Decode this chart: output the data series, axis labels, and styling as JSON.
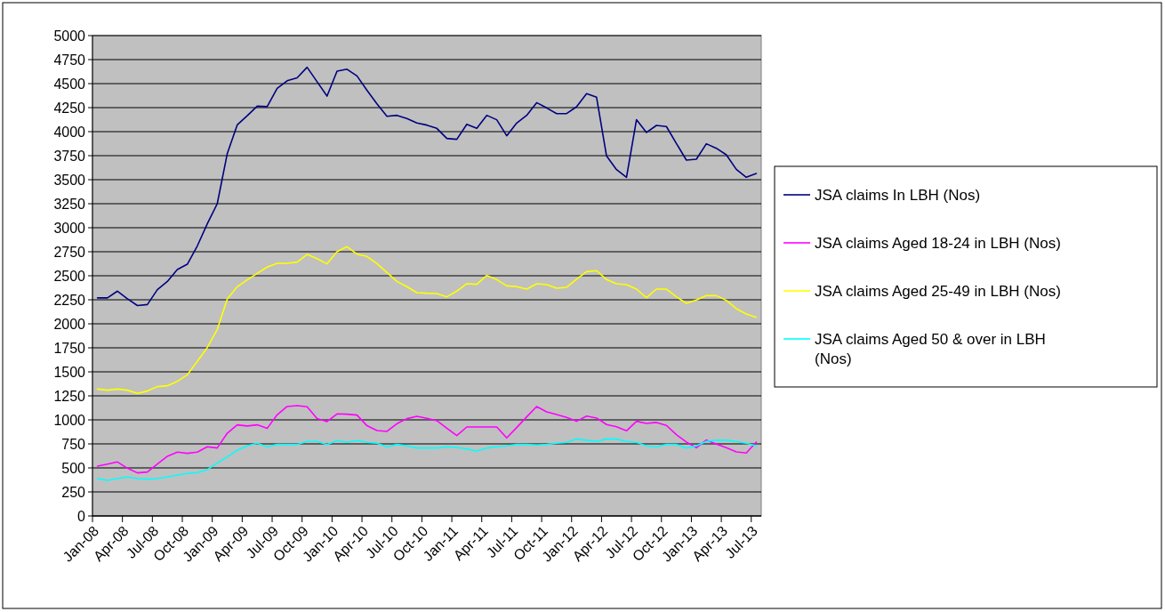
{
  "chart_data": {
    "type": "line",
    "categories": [
      "Jan-08",
      null,
      null,
      "Apr-08",
      null,
      null,
      "Jul-08",
      null,
      null,
      "Oct-08",
      null,
      null,
      "Jan-09",
      null,
      null,
      "Apr-09",
      null,
      null,
      "Jul-09",
      null,
      null,
      "Oct-09",
      null,
      null,
      "Jan-10",
      null,
      null,
      "Apr-10",
      null,
      null,
      "Jul-10",
      null,
      null,
      "Oct-10",
      null,
      null,
      "Jan-11",
      null,
      null,
      "Apr-11",
      null,
      null,
      "Jul-11",
      null,
      null,
      "Oct-11",
      null,
      null,
      "Jan-12",
      null,
      null,
      "Apr-12",
      null,
      null,
      "Jul-12",
      null,
      null,
      "Oct-12",
      null,
      null,
      "Jan-13",
      null,
      null,
      "Apr-13",
      null,
      null,
      "Jul-13"
    ],
    "series": [
      {
        "name": "JSA claims In LBH (Nos)",
        "color": "#000080",
        "values": [
          2270,
          2270,
          2340,
          2260,
          2190,
          2200,
          2355,
          2440,
          2565,
          2620,
          2810,
          3040,
          3250,
          3770,
          4070,
          4165,
          4265,
          4260,
          4450,
          4530,
          4560,
          4670,
          4520,
          4370,
          4630,
          4650,
          4580,
          4430,
          4290,
          4160,
          4170,
          4136,
          4090,
          4068,
          4034,
          3929,
          3920,
          4077,
          4034,
          4170,
          4124,
          3957,
          4090,
          4170,
          4302,
          4247,
          4188,
          4188,
          4259,
          4395,
          4358,
          3747,
          3605,
          3525,
          4124,
          3991,
          4065,
          4053,
          3877,
          3704,
          3713,
          3874,
          3827,
          3759,
          3608,
          3525,
          3565
        ]
      },
      {
        "name": "JSA claims Aged 18-24 in LBH (Nos)",
        "color": "#ff00ff",
        "values": [
          519,
          540,
          562,
          497,
          448,
          457,
          540,
          621,
          664,
          652,
          664,
          720,
          707,
          861,
          948,
          936,
          948,
          911,
          1053,
          1139,
          1148,
          1136,
          1013,
          982,
          1062,
          1059,
          1050,
          939,
          889,
          880,
          960,
          1013,
          1037,
          1016,
          991,
          914,
          837,
          926,
          926,
          926,
          926,
          812,
          920,
          1031,
          1139,
          1084,
          1056,
          1025,
          985,
          1040,
          1019,
          951,
          929,
          886,
          985,
          963,
          973,
          942,
          846,
          769,
          710,
          790,
          747,
          710,
          667,
          655,
          769
        ]
      },
      {
        "name": "JSA claims Aged 25-49 in LBH (Nos)",
        "color": "#ffff00",
        "values": [
          1321,
          1309,
          1321,
          1309,
          1275,
          1300,
          1346,
          1355,
          1401,
          1469,
          1608,
          1753,
          1942,
          2256,
          2386,
          2457,
          2525,
          2590,
          2630,
          2630,
          2642,
          2722,
          2679,
          2624,
          2750,
          2803,
          2725,
          2701,
          2627,
          2534,
          2441,
          2386,
          2324,
          2318,
          2315,
          2281,
          2340,
          2417,
          2411,
          2503,
          2460,
          2395,
          2386,
          2361,
          2417,
          2408,
          2371,
          2380,
          2463,
          2543,
          2553,
          2460,
          2417,
          2408,
          2361,
          2272,
          2361,
          2361,
          2281,
          2213,
          2247,
          2293,
          2293,
          2244,
          2158,
          2102,
          2068
        ]
      },
      {
        "name": "JSA claims Aged 50 & over in LBH (Nos)",
        "color": "#00ffff",
        "values": [
          389,
          371,
          389,
          405,
          389,
          383,
          389,
          405,
          426,
          442,
          451,
          482,
          550,
          615,
          683,
          729,
          757,
          720,
          744,
          744,
          744,
          775,
          775,
          744,
          784,
          766,
          784,
          766,
          757,
          720,
          744,
          729,
          707,
          707,
          707,
          720,
          713,
          698,
          676,
          707,
          720,
          729,
          744,
          744,
          738,
          744,
          757,
          766,
          800,
          788,
          775,
          800,
          800,
          775,
          766,
          729,
          720,
          744,
          744,
          707,
          729,
          775,
          788,
          788,
          775,
          757,
          729
        ]
      }
    ],
    "ylim": [
      0,
      5000
    ],
    "yticks": [
      0,
      250,
      500,
      750,
      1000,
      1250,
      1500,
      1750,
      2000,
      2250,
      2500,
      2750,
      3000,
      3250,
      3500,
      3750,
      4000,
      4250,
      4500,
      4750,
      5000
    ],
    "grid": "y",
    "legend": "right",
    "marker": "none",
    "line_style": "solid"
  }
}
